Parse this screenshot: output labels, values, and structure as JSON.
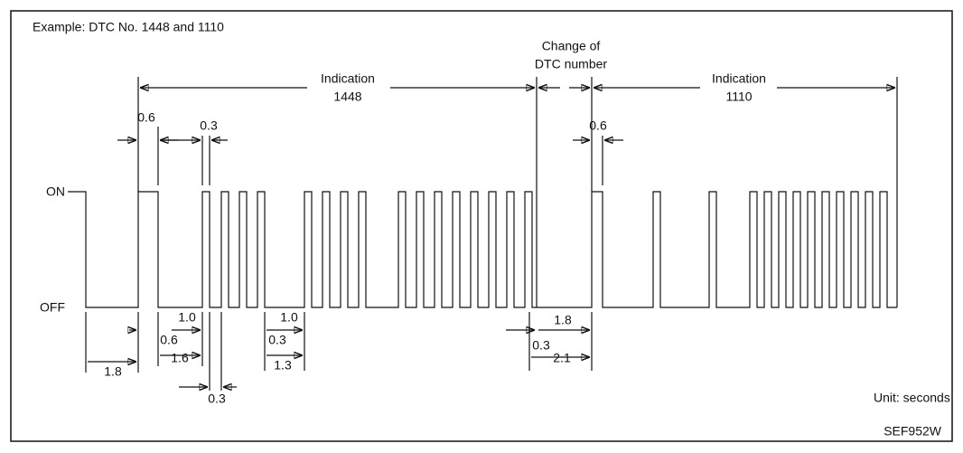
{
  "title": "Example: DTC No. 1448 and 1110",
  "levels": {
    "on": "ON",
    "off": "OFF"
  },
  "indications": [
    {
      "label": "Indication",
      "code": "1448"
    },
    {
      "label": "Indication",
      "code": "1110"
    }
  ],
  "change": [
    "Change of",
    "DTC number"
  ],
  "dimensions": [
    "0.6",
    "0.3",
    "0.6",
    "1.0",
    "0.6",
    "1.6",
    "1.8",
    "0.3",
    "1.0",
    "0.3",
    "1.3",
    "1.8",
    "0.3",
    "2.1"
  ],
  "unit": "Unit: seconds",
  "figure_id": "SEF952W"
}
